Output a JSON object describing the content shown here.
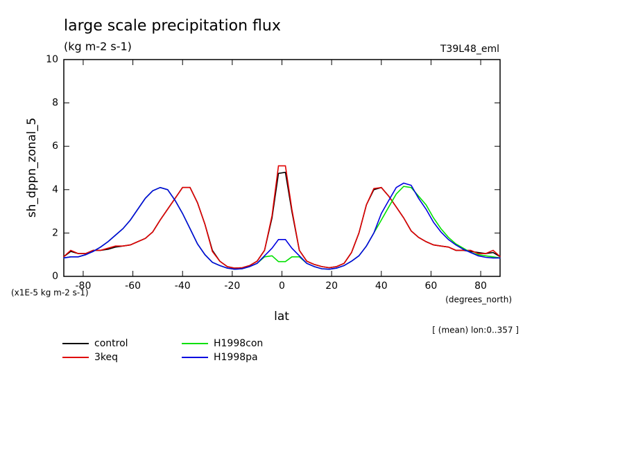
{
  "chart_data": {
    "type": "line",
    "title": "large scale precipitation flux",
    "subtitle": "(kg m-2 s-1)",
    "annotation": "T39L48_eml",
    "y_label": "sh_dppn_zonal_5",
    "y_units": "(x1E-5 kg m-2 s-1)",
    "x_units": "(degrees_north)",
    "x_label": "lat",
    "footnote": "[ (mean) lon:0..357 ]",
    "xlim": [
      -87.8,
      87.8
    ],
    "ylim": [
      0,
      10
    ],
    "xticks": [
      -80,
      -60,
      -40,
      -20,
      0,
      20,
      40,
      60,
      80
    ],
    "yticks": [
      0,
      2,
      4,
      6,
      8,
      10
    ],
    "x": [
      -87.9,
      -85,
      -82,
      -79,
      -76,
      -73,
      -70,
      -67,
      -64,
      -61,
      -58,
      -55,
      -52,
      -49,
      -46,
      -43,
      -40,
      -37,
      -34,
      -31,
      -28,
      -25,
      -22,
      -19,
      -16,
      -13,
      -10,
      -7,
      -4,
      -1.4,
      1.4,
      4,
      7,
      10,
      13,
      16,
      19,
      22,
      25,
      28,
      31,
      34,
      37,
      40,
      43,
      46,
      49,
      52,
      55,
      58,
      61,
      64,
      67,
      70,
      73,
      76,
      79,
      82,
      85,
      87.9
    ],
    "series": [
      {
        "name": "control",
        "color": "#000000",
        "values": [
          0.9,
          1.15,
          1.05,
          1.05,
          1.2,
          1.2,
          1.25,
          1.35,
          1.4,
          1.45,
          1.6,
          1.75,
          2.05,
          2.6,
          3.1,
          3.6,
          4.1,
          4.1,
          3.4,
          2.4,
          1.2,
          0.7,
          0.45,
          0.38,
          0.4,
          0.5,
          0.7,
          1.2,
          2.7,
          4.75,
          4.8,
          3.0,
          1.2,
          0.7,
          0.55,
          0.45,
          0.4,
          0.45,
          0.6,
          1.1,
          2.0,
          3.3,
          4.0,
          4.1,
          3.7,
          3.2,
          2.7,
          2.1,
          1.8,
          1.6,
          1.45,
          1.4,
          1.35,
          1.2,
          1.2,
          1.15,
          1.1,
          1.05,
          1.1,
          0.9
        ]
      },
      {
        "name": "3keq",
        "color": "#e00000",
        "values": [
          0.9,
          1.2,
          1.05,
          1.05,
          1.2,
          1.2,
          1.3,
          1.4,
          1.4,
          1.45,
          1.6,
          1.75,
          2.05,
          2.6,
          3.1,
          3.6,
          4.1,
          4.1,
          3.4,
          2.4,
          1.15,
          0.7,
          0.45,
          0.38,
          0.4,
          0.5,
          0.7,
          1.2,
          2.8,
          5.1,
          5.1,
          3.1,
          1.2,
          0.7,
          0.55,
          0.45,
          0.4,
          0.45,
          0.6,
          1.1,
          2.0,
          3.3,
          4.05,
          4.1,
          3.7,
          3.2,
          2.7,
          2.1,
          1.8,
          1.6,
          1.45,
          1.4,
          1.35,
          1.2,
          1.2,
          1.2,
          1.05,
          1.05,
          1.2,
          0.9
        ]
      },
      {
        "name": "H1998con",
        "color": "#00e000",
        "values": [
          0.85,
          0.9,
          0.9,
          1.0,
          1.15,
          1.35,
          1.6,
          1.9,
          2.2,
          2.6,
          3.1,
          3.6,
          3.95,
          4.1,
          4.0,
          3.5,
          2.9,
          2.2,
          1.5,
          1.0,
          0.65,
          0.5,
          0.38,
          0.33,
          0.35,
          0.45,
          0.6,
          0.9,
          0.95,
          0.68,
          0.68,
          0.9,
          0.9,
          0.6,
          0.45,
          0.35,
          0.33,
          0.38,
          0.5,
          0.7,
          0.95,
          1.4,
          2.0,
          2.6,
          3.2,
          3.8,
          4.15,
          4.1,
          3.7,
          3.3,
          2.7,
          2.2,
          1.8,
          1.5,
          1.3,
          1.1,
          1.0,
          0.95,
          0.9,
          0.85
        ]
      },
      {
        "name": "H1998pa",
        "color": "#0000e0",
        "values": [
          0.85,
          0.9,
          0.9,
          1.0,
          1.15,
          1.35,
          1.6,
          1.9,
          2.2,
          2.6,
          3.1,
          3.6,
          3.95,
          4.1,
          4.0,
          3.5,
          2.9,
          2.2,
          1.5,
          1.0,
          0.65,
          0.5,
          0.38,
          0.33,
          0.35,
          0.45,
          0.6,
          0.95,
          1.3,
          1.7,
          1.7,
          1.3,
          0.95,
          0.6,
          0.45,
          0.35,
          0.33,
          0.38,
          0.5,
          0.7,
          0.95,
          1.4,
          2.0,
          2.9,
          3.5,
          4.1,
          4.3,
          4.2,
          3.6,
          3.1,
          2.5,
          2.05,
          1.7,
          1.45,
          1.25,
          1.1,
          0.95,
          0.88,
          0.85,
          0.85
        ]
      }
    ]
  }
}
